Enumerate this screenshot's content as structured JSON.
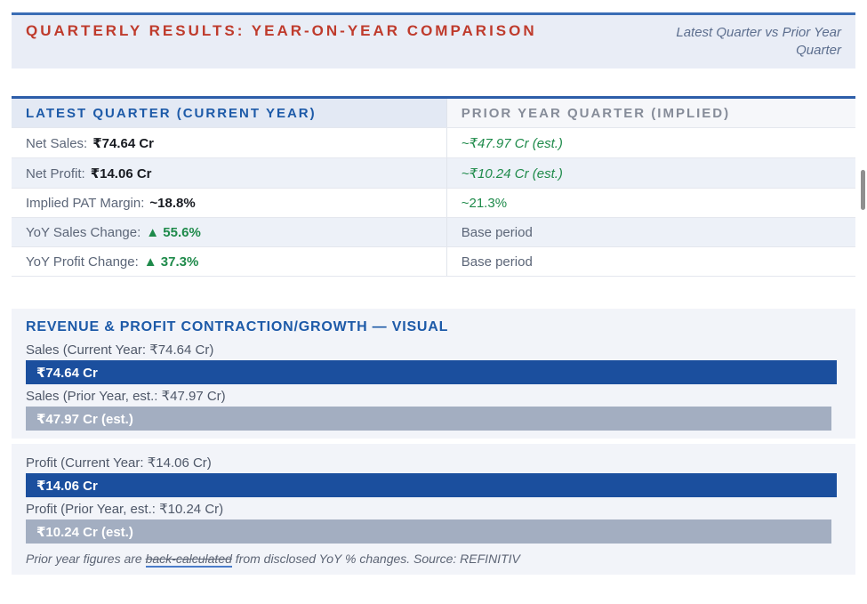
{
  "colors": {
    "accent_red": "#bf3b2c",
    "accent_blue": "#1d5aa8",
    "bar_blue": "#1b4f9e",
    "bar_gray": "#a3aec1",
    "positive_green": "#1e8a4a",
    "header_band_bg": "#e9edf6",
    "section_bg": "#f2f4f9",
    "alt_row_bg": "#edf1f8"
  },
  "header": {
    "title": "QUARTERLY RESULTS: YEAR-ON-YEAR COMPARISON",
    "subtitle": "Latest Quarter vs Prior Year Quarter"
  },
  "table": {
    "col_left": "LATEST QUARTER (CURRENT YEAR)",
    "col_right": "PRIOR YEAR QUARTER (IMPLIED)",
    "rows": [
      {
        "label": "Net Sales:",
        "value": "₹74.64 Cr",
        "prior": "~₹47.97 Cr (est.)"
      },
      {
        "label": "Net Profit:",
        "value": "₹14.06 Cr",
        "prior": "~₹10.24 Cr (est.)"
      },
      {
        "label": "Implied PAT Margin:",
        "value": "~18.8%",
        "prior": "~21.3%"
      },
      {
        "label": "YoY Sales Change:",
        "value": "▲ 55.6%",
        "prior": "Base period"
      },
      {
        "label": "YoY Profit Change:",
        "value": "▲ 37.3%",
        "prior": "Base period"
      }
    ]
  },
  "visual": {
    "title": "REVENUE & PROFIT CONTRACTION/GROWTH — VISUAL",
    "bars": [
      {
        "label": "Sales (Current Year: ₹74.64 Cr)",
        "bar_text": "₹74.64 Cr"
      },
      {
        "label": "Sales (Prior Year, est.: ₹47.97 Cr)",
        "bar_text": "₹47.97 Cr (est.)"
      },
      {
        "label": "Profit (Current Year: ₹14.06 Cr)",
        "bar_text": "₹14.06 Cr"
      },
      {
        "label": "Profit (Prior Year, est.: ₹10.24 Cr)",
        "bar_text": "₹10.24 Cr (est.)"
      }
    ],
    "footnote_prefix": "Prior year figures are ",
    "footnote_link": "back-calculated",
    "footnote_suffix": " from disclosed YoY % changes. Source: REFINITIV"
  },
  "chart_data": {
    "type": "bar",
    "title": "REVENUE & PROFIT CONTRACTION/GROWTH — VISUAL",
    "categories": [
      "Sales (Current Year)",
      "Sales (Prior Year, est.)",
      "Profit (Current Year)",
      "Profit (Prior Year, est.)"
    ],
    "values": [
      74.64,
      47.97,
      14.06,
      10.24
    ],
    "unit": "₹ Cr",
    "series_colors": [
      "#1b4f9e",
      "#a3aec1",
      "#1b4f9e",
      "#a3aec1"
    ],
    "notes": "Bars rendered full-width (decorative, not value-proportional); current-year bars blue, prior-year estimated bars gray"
  }
}
